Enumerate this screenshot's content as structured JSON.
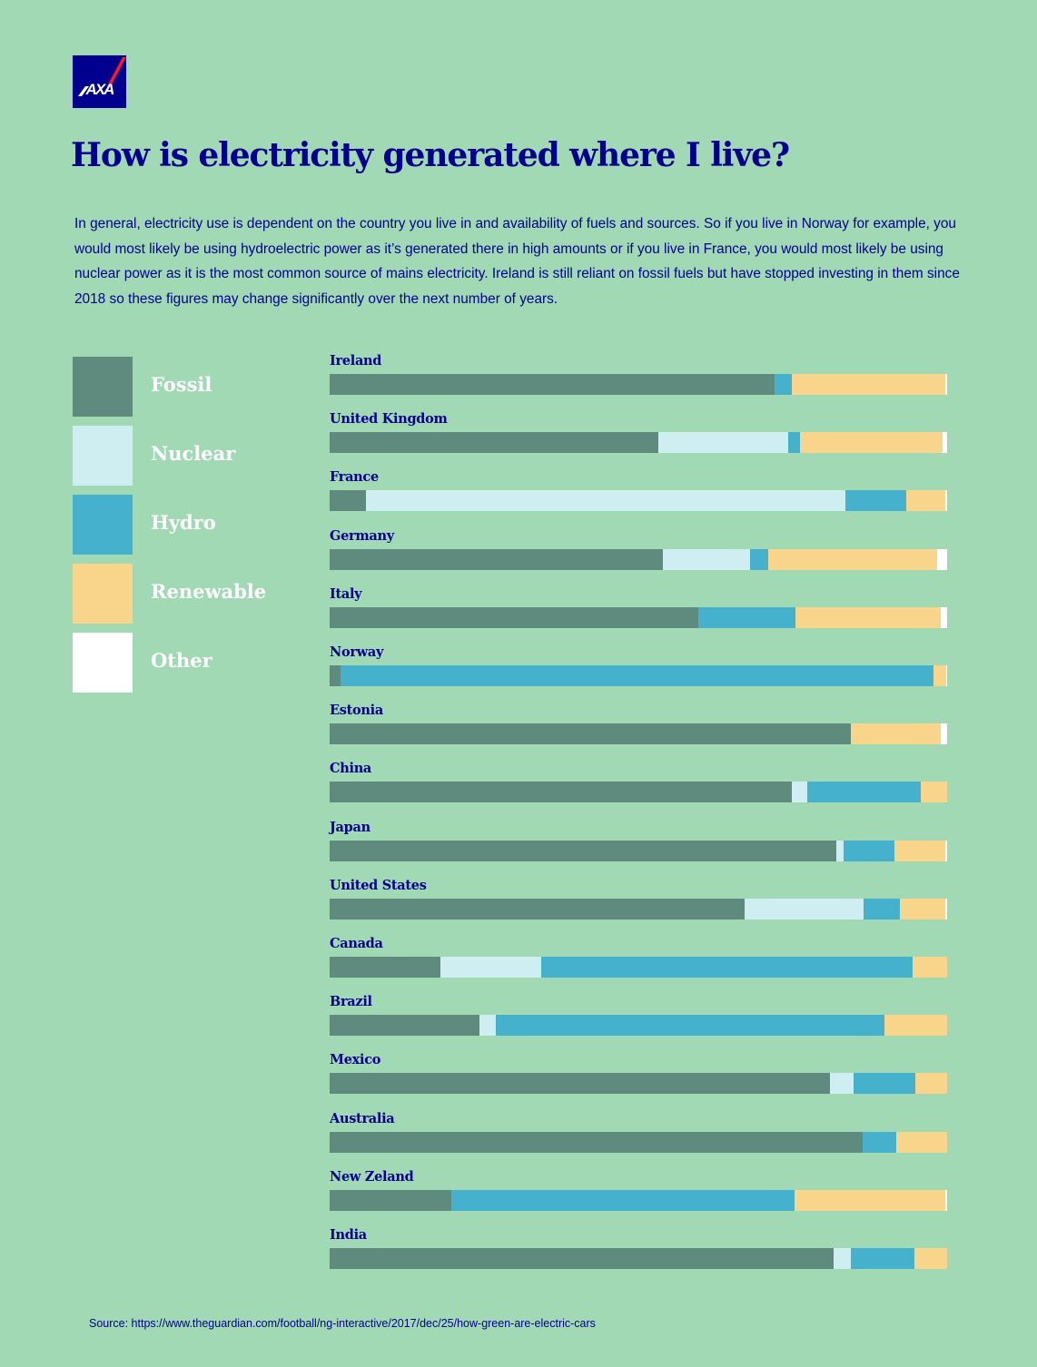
{
  "logo_text": "AXA",
  "title": "How is electricity generated where I live?",
  "intro": "In general, electricity use is dependent on the country you live in and availability of fuels and sources. So if you live in Norway for example, you would most likely be using hydroelectric power as it’s generated there in high amounts or if you live in France, you would most likely be using nuclear power as it is the most common source of mains electricity. Ireland is still reliant on fossil fuels but have stopped investing in them since 2018 so these figures may change significantly over the next number of years.",
  "colors": {
    "background": "#a0d9b4",
    "brand": "#00008f",
    "brand_accent": "#ff1721"
  },
  "legend": [
    {
      "label": "Fossil",
      "color": "#5e8b7e"
    },
    {
      "label": "Nuclear",
      "color": "#ceeef1"
    },
    {
      "label": "Hydro",
      "color": "#46b1cc"
    },
    {
      "label": "Renewable",
      "color": "#f8d58b"
    },
    {
      "label": "Other",
      "color": "#ffffff"
    }
  ],
  "chart_data": {
    "type": "bar",
    "orientation": "horizontal",
    "stacked": true,
    "unit": "percent",
    "categories": [
      "Ireland",
      "United Kingdom",
      "France",
      "Germany",
      "Italy",
      "Norway",
      "Estonia",
      "China",
      "Japan",
      "United States",
      "Canada",
      "Brazil",
      "Mexico",
      "Australia",
      "New Zeland",
      "India"
    ],
    "series": [
      {
        "name": "Fossil",
        "color": "#5e8b7e",
        "values": [
          72,
          53.3,
          5.9,
          54,
          59.7,
          1.8,
          84.4,
          74.8,
          82,
          67.2,
          17.9,
          24.3,
          81,
          86.3,
          19.7,
          81.6
        ]
      },
      {
        "name": "Nuclear",
        "color": "#ceeef1",
        "values": [
          0,
          21,
          77.6,
          14.1,
          0,
          0,
          0,
          2.5,
          1.2,
          19.3,
          16.4,
          2.6,
          3.8,
          0,
          0,
          2.8
        ]
      },
      {
        "name": "Hydro",
        "color": "#46b1cc",
        "values": [
          2.9,
          1.9,
          9.9,
          2.9,
          15.8,
          96,
          0,
          18.4,
          8.3,
          5.9,
          60.1,
          63,
          10,
          5.5,
          55.6,
          10.3
        ]
      },
      {
        "name": "Renewable",
        "color": "#f8d58b",
        "values": [
          24.8,
          23,
          6.3,
          27.4,
          23.5,
          2.1,
          14.6,
          4.3,
          8.2,
          7.3,
          5.6,
          10.1,
          5.2,
          8.2,
          24.4,
          5.3
        ]
      },
      {
        "name": "Other",
        "color": "#ffffff",
        "values": [
          0.3,
          0.8,
          0.3,
          1.6,
          1,
          0.1,
          1,
          0,
          0.3,
          0.3,
          0,
          0,
          0,
          0,
          0.3,
          0
        ]
      }
    ]
  },
  "source": "Source: https://www.theguardian.com/football/ng-interactive/2017/dec/25/how-green-are-electric-cars"
}
